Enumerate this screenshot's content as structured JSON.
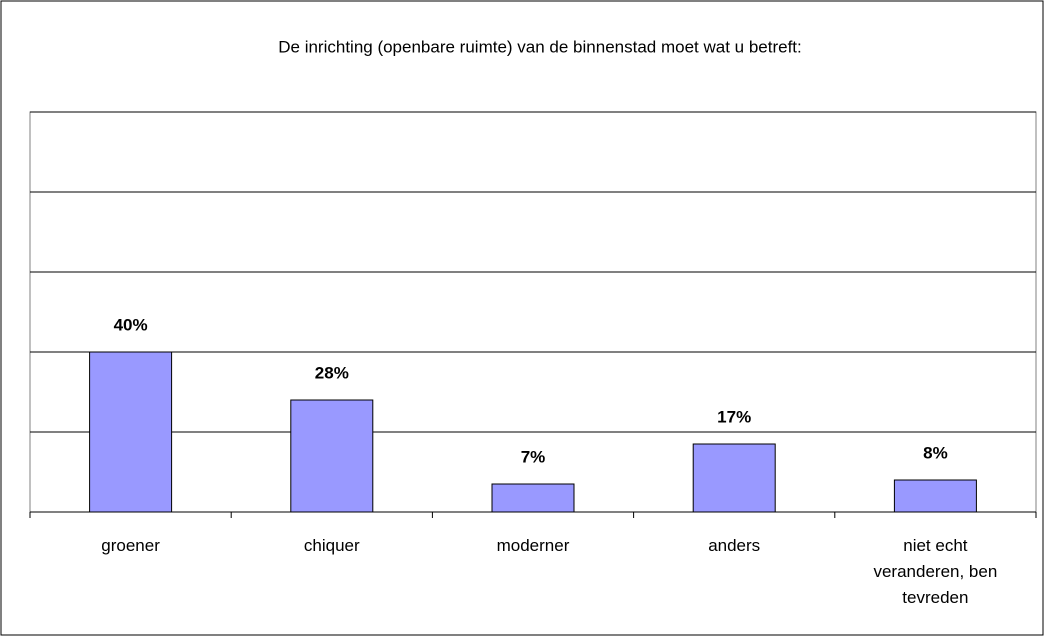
{
  "chart_data": {
    "type": "bar",
    "title": "De inrichting (openbare ruimte) van de binnenstad moet wat u betreft:",
    "categories": [
      "groener",
      "chiquer",
      "moderner",
      "anders",
      "niet echt veranderen, ben tevreden"
    ],
    "values": [
      40,
      28,
      7,
      17,
      8
    ],
    "value_labels": [
      "40%",
      "28%",
      "7%",
      "17%",
      "8%"
    ],
    "color": "#9999ff",
    "ylim": [
      0,
      100
    ],
    "yticks": [
      0,
      20,
      40,
      60,
      80,
      100
    ],
    "grid": true
  }
}
